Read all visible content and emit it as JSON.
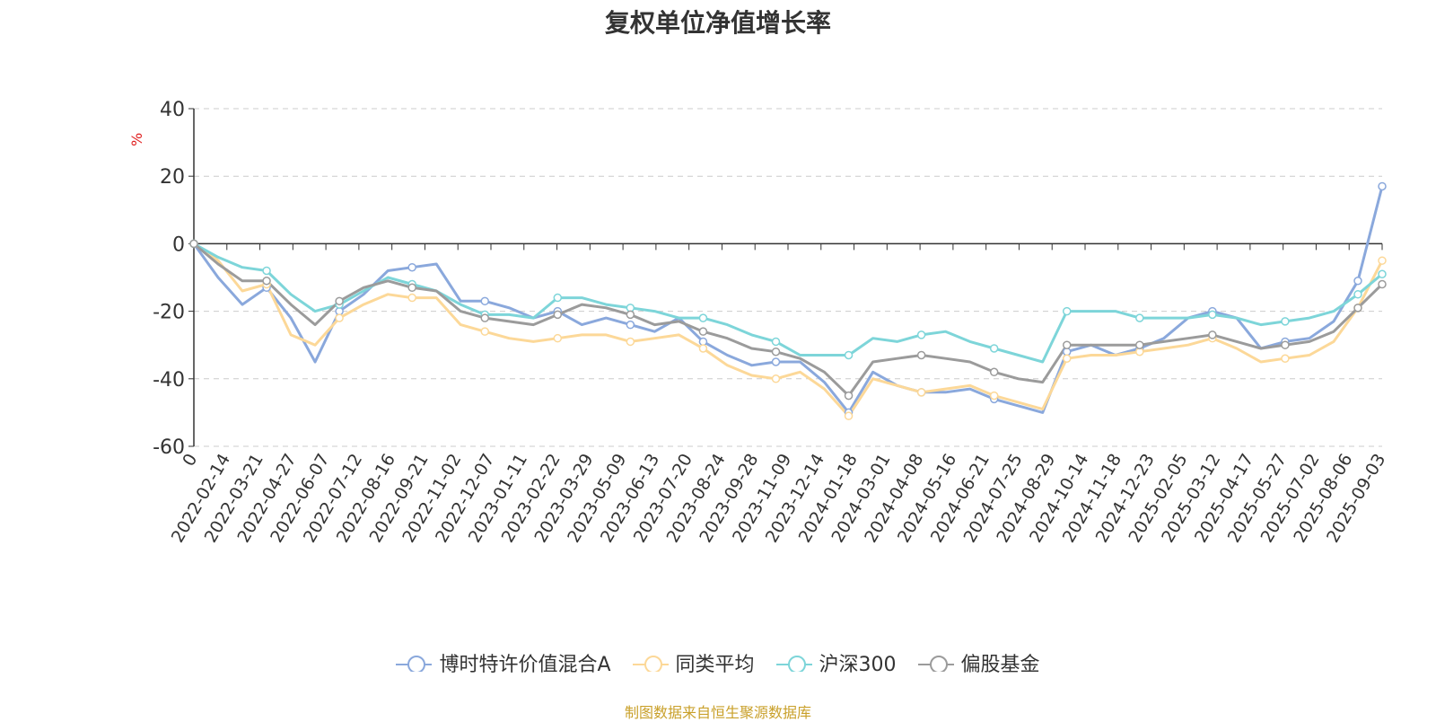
{
  "title": "复权单位净值增长率",
  "footer": "制图数据来自恒生聚源数据库",
  "chart_data": {
    "type": "line",
    "title": "复权单位净值增长率",
    "ylabel": "%",
    "ylim": [
      -60,
      40
    ],
    "yticks": [
      40,
      20,
      0,
      -20,
      -40,
      -60
    ],
    "grid": true,
    "legend_position": "bottom",
    "x_tick_labels": [
      "0",
      "2022-02-14",
      "2022-03-21",
      "2022-04-27",
      "2022-06-07",
      "2022-07-12",
      "2022-08-16",
      "2022-09-21",
      "2022-11-02",
      "2022-12-07",
      "2023-01-11",
      "2023-02-22",
      "2023-03-29",
      "2023-05-09",
      "2023-06-13",
      "2023-07-20",
      "2023-08-24",
      "2023-09-28",
      "2023-11-09",
      "2023-12-14",
      "2024-01-18",
      "2024-03-01",
      "2024-04-08",
      "2024-05-16",
      "2024-06-21",
      "2024-07-25",
      "2024-08-29",
      "2024-10-14",
      "2024-11-18",
      "2024-12-23",
      "2025-02-05",
      "2025-03-12",
      "2025-04-17",
      "2025-05-27",
      "2025-07-02",
      "2025-08-06",
      "2025-09-03"
    ],
    "series": [
      {
        "name": "博时特许价值混合A",
        "color": "#8aa8dc",
        "values": [
          0,
          -10,
          -18,
          -13,
          -22,
          -35,
          -20,
          -15,
          -8,
          -7,
          -6,
          -17,
          -17,
          -19,
          -22,
          -20,
          -24,
          -22,
          -24,
          -26,
          -22,
          -29,
          -33,
          -36,
          -35,
          -35,
          -41,
          -50,
          -38,
          -42,
          -44,
          -44,
          -43,
          -46,
          -48,
          -50,
          -32,
          -30,
          -33,
          -31,
          -28,
          -22,
          -20,
          -22,
          -31,
          -29,
          -28,
          -23,
          -11,
          17
        ]
      },
      {
        "name": "同类平均",
        "color": "#fcd898",
        "values": [
          0,
          -5,
          -14,
          -12,
          -27,
          -30,
          -22,
          -18,
          -15,
          -16,
          -16,
          -24,
          -26,
          -28,
          -29,
          -28,
          -27,
          -27,
          -29,
          -28,
          -27,
          -31,
          -36,
          -39,
          -40,
          -38,
          -43,
          -51,
          -40,
          -42,
          -44,
          -43,
          -42,
          -45,
          -47,
          -49,
          -34,
          -33,
          -33,
          -32,
          -31,
          -30,
          -28,
          -31,
          -35,
          -34,
          -33,
          -29,
          -19,
          -5
        ]
      },
      {
        "name": "沪深300",
        "color": "#7dd5d9",
        "values": [
          0,
          -4,
          -7,
          -8,
          -15,
          -20,
          -18,
          -14,
          -10,
          -12,
          -14,
          -18,
          -21,
          -21,
          -22,
          -16,
          -16,
          -18,
          -19,
          -20,
          -22,
          -22,
          -24,
          -27,
          -29,
          -33,
          -33,
          -33,
          -28,
          -29,
          -27,
          -26,
          -29,
          -31,
          -33,
          -35,
          -20,
          -20,
          -20,
          -22,
          -22,
          -22,
          -21,
          -22,
          -24,
          -23,
          -22,
          -20,
          -15,
          -9
        ]
      },
      {
        "name": "偏股基金",
        "color": "#9b9b9b",
        "values": [
          0,
          -6,
          -11,
          -11,
          -18,
          -24,
          -17,
          -13,
          -11,
          -13,
          -14,
          -20,
          -22,
          -23,
          -24,
          -21,
          -18,
          -19,
          -21,
          -24,
          -23,
          -26,
          -28,
          -31,
          -32,
          -34,
          -38,
          -45,
          -35,
          -34,
          -33,
          -34,
          -35,
          -38,
          -40,
          -41,
          -30,
          -30,
          -30,
          -30,
          -29,
          -28,
          -27,
          -29,
          -31,
          -30,
          -29,
          -26,
          -19,
          -12
        ]
      }
    ]
  }
}
